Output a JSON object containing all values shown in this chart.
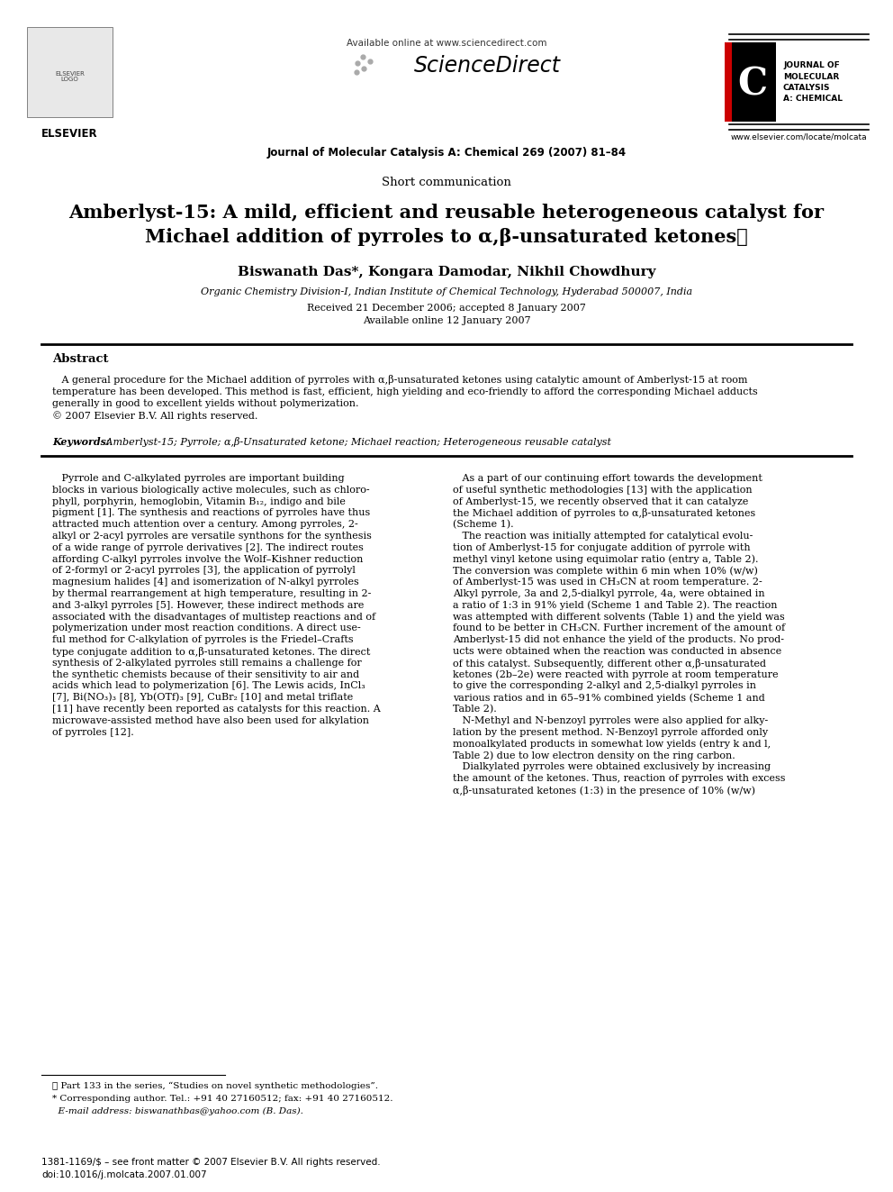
{
  "bg_color": "#ffffff",
  "title_line1": "Amberlyst-15: A mild, efficient and reusable heterogeneous catalyst for",
  "title_line2": "Michael addition of pyrroles to α,β-unsaturated ketones⋆",
  "short_comm": "Short communication",
  "authors": "Biswanath Das*, Kongara Damodar, Nikhil Chowdhury",
  "affiliation": "Organic Chemistry Division-I, Indian Institute of Chemical Technology, Hyderabad 500007, India",
  "received": "Received 21 December 2006; accepted 8 January 2007",
  "available_online": "Available online 12 January 2007",
  "journal_line": "Journal of Molecular Catalysis A: Chemical 269 (2007) 81–84",
  "available_online_header": "Available online at www.sciencedirect.com",
  "elsevier_text": "ELSEVIER",
  "journal_name_right": "JOURNAL OF\nMOLECULAR\nCATALYSIS\nA: CHEMICAL",
  "website": "www.elsevier.com/locate/molcata",
  "abstract_title": "Abstract",
  "abstract_text": "   A general procedure for the Michael addition of pyrroles with α,β-unsaturated ketones using catalytic amount of Amberlyst-15 at room\ntemperature has been developed. This method is fast, efficient, high yielding and eco-friendly to afford the corresponding Michael adducts\ngenerally in good to excellent yields without polymerization.\n© 2007 Elsevier B.V. All rights reserved.",
  "keywords_label": "Keywords: ",
  "keywords_text": " Amberlyst-15; Pyrrole; α,β-Unsaturated ketone; Michael reaction; Heterogeneous reusable catalyst",
  "body_left_col": [
    "   Pyrrole and C-alkylated pyrroles are important building",
    "blocks in various biologically active molecules, such as chloro-",
    "phyll, porphyrin, hemoglobin, Vitamin B₁₂, indigo and bile",
    "pigment [1]. The synthesis and reactions of pyrroles have thus",
    "attracted much attention over a century. Among pyrroles, 2-",
    "alkyl or 2-acyl pyrroles are versatile synthons for the synthesis",
    "of a wide range of pyrrole derivatives [2]. The indirect routes",
    "affording C-alkyl pyrroles involve the Wolf–Kishner reduction",
    "of 2-formyl or 2-acyl pyrroles [3], the application of pyrrolyl",
    "magnesium halides [4] and isomerization of N-alkyl pyrroles",
    "by thermal rearrangement at high temperature, resulting in 2-",
    "and 3-alkyl pyrroles [5]. However, these indirect methods are",
    "associated with the disadvantages of multistep reactions and of",
    "polymerization under most reaction conditions. A direct use-",
    "ful method for C-alkylation of pyrroles is the Friedel–Crafts",
    "type conjugate addition to α,β-unsaturated ketones. The direct",
    "synthesis of 2-alkylated pyrroles still remains a challenge for",
    "the synthetic chemists because of their sensitivity to air and",
    "acids which lead to polymerization [6]. The Lewis acids, InCl₃",
    "[7], Bi(NO₃)₃ [8], Yb(OTf)₃ [9], CuBr₂ [10] and metal triflate",
    "[11] have recently been reported as catalysts for this reaction. A",
    "microwave-assisted method have also been used for alkylation",
    "of pyrroles [12]."
  ],
  "body_right_col": [
    "   As a part of our continuing effort towards the development",
    "of useful synthetic methodologies [13] with the application",
    "of Amberlyst-15, we recently observed that it can catalyze",
    "the Michael addition of pyrroles to α,β-unsaturated ketones",
    "(Scheme 1).",
    "   The reaction was initially attempted for catalytical evolu-",
    "tion of Amberlyst-15 for conjugate addition of pyrrole with",
    "methyl vinyl ketone using equimolar ratio (entry a, Table 2).",
    "The conversion was complete within 6 min when 10% (w/w)",
    "of Amberlyst-15 was used in CH₃CN at room temperature. 2-",
    "Alkyl pyrrole, 3a and 2,5-dialkyl pyrrole, 4a, were obtained in",
    "a ratio of 1:3 in 91% yield (Scheme 1 and Table 2). The reaction",
    "was attempted with different solvents (Table 1) and the yield was",
    "found to be better in CH₃CN. Further increment of the amount of",
    "Amberlyst-15 did not enhance the yield of the products. No prod-",
    "ucts were obtained when the reaction was conducted in absence",
    "of this catalyst. Subsequently, different other α,β-unsaturated",
    "ketones (2b–2e) were reacted with pyrrole at room temperature",
    "to give the corresponding 2-alkyl and 2,5-dialkyl pyrroles in",
    "various ratios and in 65–91% combined yields (Scheme 1 and",
    "Table 2).",
    "   N-Methyl and N-benzoyl pyrroles were also applied for alky-",
    "lation by the present method. N-Benzoyl pyrrole afforded only",
    "monoalkylated products in somewhat low yields (entry k and l,",
    "Table 2) due to low electron density on the ring carbon.",
    "   Dialkylated pyrroles were obtained exclusively by increasing",
    "the amount of the ketones. Thus, reaction of pyrroles with excess",
    "α,β-unsaturated ketones (1:3) in the presence of 10% (w/w)"
  ],
  "footnote_star": "⋆ Part 133 in the series, “Studies on novel synthetic methodologies”.",
  "footnote_corr": "* Corresponding author. Tel.: +91 40 27160512; fax: +91 40 27160512.",
  "footnote_email": "  E-mail address: biswanathbas@yahoo.com (B. Das).",
  "footer_issn": "1381-1169/$ – see front matter © 2007 Elsevier B.V. All rights reserved.",
  "footer_doi": "doi:10.1016/j.molcata.2007.01.007"
}
